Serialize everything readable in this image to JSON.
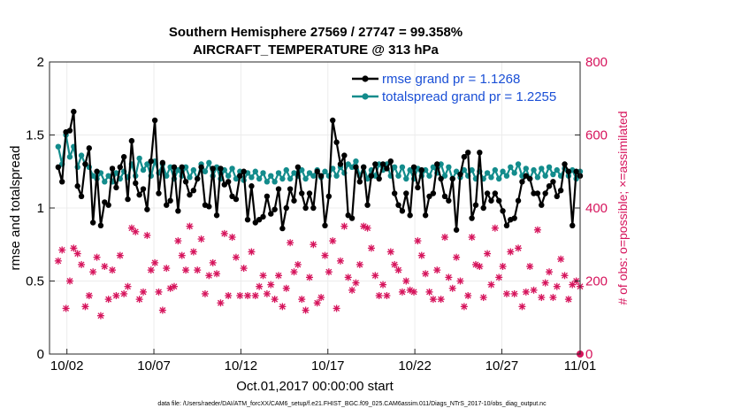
{
  "chart_data": {
    "type": "line",
    "title_line1": "Southern Hemisphere 27569 / 27747 = 99.358%",
    "title_line2": "AIRCRAFT_TEMPERATURE @ 313 hPa",
    "xlabel": "Oct.01,2017 00:00:00 start",
    "ylabel_left": "rmse and totalspread",
    "ylabel_right": "# of obs: o=possible; ×=assimilated",
    "x_range_days": [
      0.5,
      31.0
    ],
    "ylim_left": [
      0,
      2
    ],
    "ylim_right": [
      0,
      800
    ],
    "x_ticks": [
      {
        "day": 1.5,
        "label": "10/02"
      },
      {
        "day": 6.5,
        "label": "10/07"
      },
      {
        "day": 11.5,
        "label": "10/12"
      },
      {
        "day": 16.5,
        "label": "10/17"
      },
      {
        "day": 21.5,
        "label": "10/22"
      },
      {
        "day": 26.5,
        "label": "10/27"
      },
      {
        "day": 31.0,
        "label": "11/01"
      }
    ],
    "y_ticks_left": [
      "0",
      "0.5",
      "1",
      "1.5",
      "2"
    ],
    "y_ticks_right": [
      "0",
      "200",
      "400",
      "600",
      "800"
    ],
    "footer": "data file: /Users/raeder/DAI/ATM_forcXX/CAM6_setup/f.e21.FHIST_BGC.f09_025.CAM6assim.011/Diags_NTrS_2017-10/obs_diag_output.nc",
    "series": [
      {
        "name": "rmse grand pr = 1.1268",
        "color": "#000000",
        "values": [
          1.28,
          1.18,
          1.52,
          1.53,
          1.66,
          1.15,
          1.08,
          1.3,
          1.41,
          0.9,
          1.25,
          0.88,
          1.04,
          1.02,
          1.27,
          1.14,
          1.28,
          1.35,
          1.06,
          1.46,
          1.17,
          1.09,
          1.13,
          0.99,
          1.32,
          1.6,
          1.1,
          1.31,
          1.02,
          1.05,
          1.28,
          0.98,
          1.28,
          1.18,
          1.09,
          1.12,
          1.2,
          1.28,
          1.02,
          1.01,
          1.27,
          0.95,
          1.27,
          1.16,
          1.18,
          1.08,
          1.06,
          1.22,
          1.25,
          0.92,
          1.15,
          0.9,
          0.92,
          0.94,
          1.08,
          0.96,
          0.99,
          1.13,
          0.86,
          1.0,
          1.13,
          1.05,
          1.28,
          1.1,
          1.0,
          1.1,
          1.0,
          1.25,
          1.22,
          0.88,
          1.08,
          1.6,
          1.45,
          1.3,
          1.36,
          0.95,
          0.93,
          1.28,
          1.18,
          1.28,
          1.02,
          1.22,
          1.3,
          1.2,
          1.3,
          1.27,
          1.32,
          1.1,
          1.02,
          0.98,
          1.1,
          0.95,
          1.28,
          1.14,
          1.26,
          0.95,
          1.08,
          1.1,
          1.3,
          1.2,
          1.08,
          1.05,
          1.2,
          0.85,
          1.23,
          1.35,
          1.38,
          0.93,
          1.02,
          1.38,
          1.0,
          1.1,
          1.05,
          1.1,
          1.05,
          0.98,
          0.88,
          0.92,
          0.93,
          1.05,
          1.18,
          1.22,
          1.2,
          1.1,
          1.1,
          1.02,
          1.1,
          1.15,
          1.18,
          1.08,
          1.12,
          1.3,
          1.25,
          0.88,
          1.25,
          1.22
        ]
      },
      {
        "name": "totalspread grand pr = 1.2255",
        "color": "#138c8c",
        "values": [
          1.42,
          1.3,
          1.5,
          1.35,
          1.42,
          1.28,
          1.36,
          1.3,
          1.28,
          1.22,
          1.2,
          1.24,
          1.18,
          1.22,
          1.18,
          1.24,
          1.2,
          1.25,
          1.21,
          1.3,
          1.22,
          1.34,
          1.26,
          1.3,
          1.22,
          1.32,
          1.24,
          1.3,
          1.22,
          1.28,
          1.2,
          1.26,
          1.22,
          1.28,
          1.21,
          1.26,
          1.2,
          1.3,
          1.25,
          1.31,
          1.22,
          1.28,
          1.2,
          1.26,
          1.22,
          1.27,
          1.2,
          1.25,
          1.19,
          1.24,
          1.21,
          1.25,
          1.2,
          1.24,
          1.18,
          1.22,
          1.18,
          1.24,
          1.2,
          1.26,
          1.2,
          1.24,
          1.22,
          1.26,
          1.2,
          1.24,
          1.22,
          1.26,
          1.21,
          1.25,
          1.22,
          1.27,
          1.22,
          1.28,
          1.24,
          1.3,
          1.28,
          1.32,
          1.22,
          1.28,
          1.2,
          1.26,
          1.22,
          1.3,
          1.26,
          1.3,
          1.22,
          1.28,
          1.22,
          1.28,
          1.2,
          1.26,
          1.2,
          1.27,
          1.22,
          1.26,
          1.22,
          1.28,
          1.24,
          1.3,
          1.22,
          1.28,
          1.2,
          1.25,
          1.21,
          1.26,
          1.22,
          1.26,
          1.2,
          1.25,
          1.2,
          1.24,
          1.21,
          1.26,
          1.2,
          1.25,
          1.22,
          1.28,
          1.24,
          1.3,
          1.22,
          1.27,
          1.2,
          1.26,
          1.21,
          1.27,
          1.22,
          1.28,
          1.23,
          1.26,
          1.22,
          1.27,
          1.22,
          1.26,
          1.2,
          1.25
        ]
      },
      {
        "name": "# of obs",
        "color": "#d6145c",
        "values": [
          255,
          285,
          125,
          200,
          290,
          275,
          245,
          130,
          160,
          225,
          265,
          105,
          240,
          150,
          230,
          160,
          270,
          165,
          185,
          345,
          335,
          150,
          170,
          325,
          230,
          250,
          170,
          120,
          235,
          180,
          185,
          310,
          270,
          230,
          350,
          280,
          230,
          315,
          165,
          215,
          250,
          220,
          140,
          330,
          160,
          320,
          265,
          160,
          235,
          160,
          280,
          160,
          185,
          215,
          165,
          190,
          150,
          215,
          130,
          180,
          305,
          225,
          245,
          150,
          120,
          210,
          300,
          140,
          155,
          270,
          225,
          310,
          125,
          255,
          350,
          210,
          175,
          195,
          245,
          350,
          345,
          290,
          215,
          160,
          190,
          160,
          280,
          245,
          230,
          170,
          200,
          175,
          170,
          310,
          270,
          220,
          170,
          150,
          230,
          150,
          320,
          210,
          180,
          265,
          200,
          130,
          160,
          320,
          245,
          240,
          155,
          275,
          190,
          345,
          210,
          240,
          165,
          280,
          165,
          290,
          130,
          170,
          240,
          175,
          340,
          155,
          195,
          225,
          155,
          185,
          260,
          215,
          150,
          190,
          200,
          185
        ]
      }
    ]
  }
}
